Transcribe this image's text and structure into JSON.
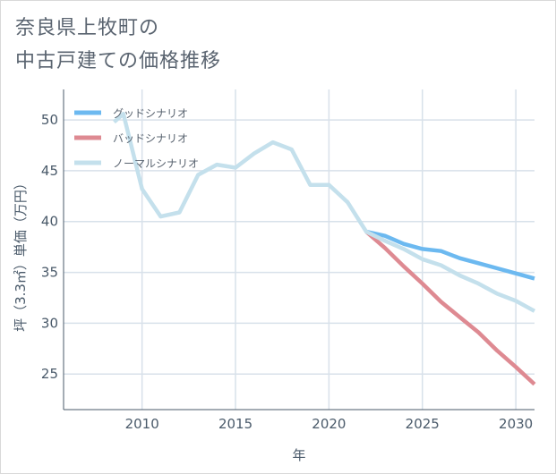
{
  "title": "奈良県上牧町の\n中古戸建ての価格推移",
  "colors": {
    "good": "#6cb9f0",
    "bad": "#de8a92",
    "normal": "#c4e0ec",
    "grid": "#d8e1ea",
    "frame": "#4a5a6a"
  },
  "chart_data": {
    "type": "line",
    "title": "奈良県上牧町の中古戸建ての価格推移",
    "xlabel": "年",
    "ylabel": "坪（3.3㎡）単価（万円）",
    "xlim": [
      2005.8,
      2031
    ],
    "ylim": [
      21.5,
      53.0
    ],
    "x_ticks": [
      2010,
      2015,
      2020,
      2025,
      2030
    ],
    "y_ticks": [
      25,
      30,
      35,
      40,
      45,
      50
    ],
    "grid": true,
    "legend_position": "top-left",
    "series": [
      {
        "name": "グッドシナリオ",
        "color_key": "good",
        "points": [
          [
            2022,
            39.0
          ],
          [
            2023,
            38.6
          ],
          [
            2024,
            37.8
          ],
          [
            2025,
            37.3
          ],
          [
            2026,
            37.1
          ],
          [
            2027,
            36.4
          ],
          [
            2028,
            35.9
          ],
          [
            2029,
            35.4
          ],
          [
            2030,
            34.9
          ],
          [
            2031,
            34.4
          ]
        ]
      },
      {
        "name": "バッドシナリオ",
        "color_key": "bad",
        "points": [
          [
            2022,
            39.0
          ],
          [
            2023,
            37.4
          ],
          [
            2024,
            35.6
          ],
          [
            2025,
            33.9
          ],
          [
            2026,
            32.1
          ],
          [
            2027,
            30.6
          ],
          [
            2028,
            29.1
          ],
          [
            2029,
            27.3
          ],
          [
            2030,
            25.7
          ],
          [
            2031,
            24.0
          ]
        ]
      },
      {
        "name": "ノーマルシナリオ",
        "color_key": "normal",
        "points": [
          [
            2008.5,
            49.8
          ],
          [
            2009,
            50.6
          ],
          [
            2010,
            43.2
          ],
          [
            2011,
            40.5
          ],
          [
            2012,
            40.9
          ],
          [
            2013,
            44.6
          ],
          [
            2014,
            45.6
          ],
          [
            2015,
            45.3
          ],
          [
            2016,
            46.7
          ],
          [
            2017,
            47.8
          ],
          [
            2018,
            47.1
          ],
          [
            2019,
            43.6
          ],
          [
            2020,
            43.6
          ],
          [
            2021,
            41.9
          ],
          [
            2022,
            39.0
          ],
          [
            2023,
            38.1
          ],
          [
            2024,
            37.3
          ],
          [
            2025,
            36.3
          ],
          [
            2026,
            35.7
          ],
          [
            2027,
            34.7
          ],
          [
            2028,
            33.9
          ],
          [
            2029,
            32.9
          ],
          [
            2030,
            32.2
          ],
          [
            2031,
            31.2
          ]
        ]
      }
    ]
  }
}
